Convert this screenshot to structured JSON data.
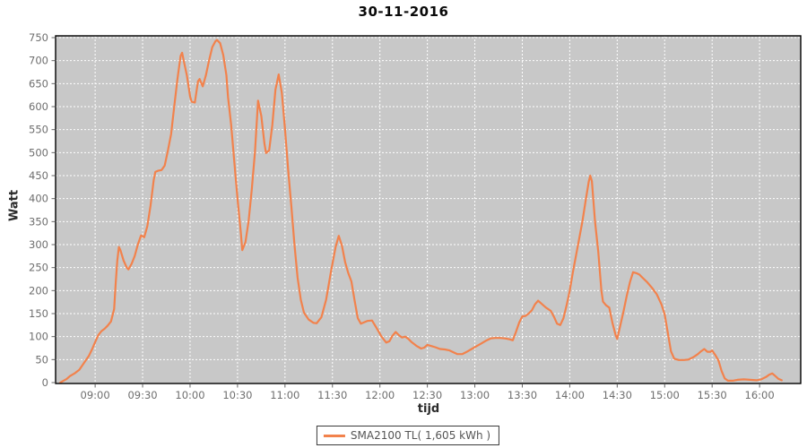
{
  "title": "30-11-2016",
  "colors": {
    "plot_background": "#C8C8C8",
    "gridline": "#FFFFFF",
    "series_line": "#F2824C",
    "plot_border": "#000000",
    "tick_label": "#6E6E6E",
    "axis_title": "#2B2B2B",
    "legend_text": "#555555"
  },
  "y_axis": {
    "label": "Watt",
    "ticks": [
      0,
      50,
      100,
      150,
      200,
      250,
      300,
      350,
      400,
      450,
      500,
      550,
      600,
      650,
      700,
      750
    ]
  },
  "x_axis": {
    "label": "tijd",
    "ticks": [
      "09:00",
      "09:30",
      "10:00",
      "10:30",
      "11:00",
      "11:30",
      "12:00",
      "12:30",
      "13:00",
      "13:30",
      "14:00",
      "14:30",
      "15:00",
      "15:30",
      "16:00"
    ]
  },
  "legend": {
    "label": "SMA2100 TL( 1,605 kWh )"
  },
  "chart_data": {
    "type": "line",
    "title": "30-11-2016",
    "xlabel": "tijd",
    "ylabel": "Watt",
    "ylim": [
      0,
      750
    ],
    "x_range": [
      "08:35",
      "16:26"
    ],
    "grid": true,
    "grid_style": "white-dashed",
    "legend_position": "bottom",
    "series": [
      {
        "name": "SMA2100 TL( 1,605 kWh )",
        "color": "#F2824C",
        "points": [
          [
            "08:38",
            0
          ],
          [
            "08:40",
            4
          ],
          [
            "08:42",
            8
          ],
          [
            "08:44",
            14
          ],
          [
            "08:47",
            20
          ],
          [
            "08:50",
            28
          ],
          [
            "08:52",
            38
          ],
          [
            "08:54",
            48
          ],
          [
            "08:56",
            58
          ],
          [
            "08:58",
            72
          ],
          [
            "09:00",
            88
          ],
          [
            "09:02",
            103
          ],
          [
            "09:04",
            112
          ],
          [
            "09:06",
            117
          ],
          [
            "09:08",
            124
          ],
          [
            "09:10",
            133
          ],
          [
            "09:12",
            160
          ],
          [
            "09:13",
            215
          ],
          [
            "09:14",
            265
          ],
          [
            "09:15",
            295
          ],
          [
            "09:16",
            288
          ],
          [
            "09:18",
            265
          ],
          [
            "09:20",
            250
          ],
          [
            "09:21",
            246
          ],
          [
            "09:23",
            258
          ],
          [
            "09:25",
            275
          ],
          [
            "09:27",
            300
          ],
          [
            "09:29",
            320
          ],
          [
            "09:31",
            316
          ],
          [
            "09:33",
            340
          ],
          [
            "09:35",
            385
          ],
          [
            "09:37",
            440
          ],
          [
            "09:38",
            458
          ],
          [
            "09:40",
            461
          ],
          [
            "09:42",
            462
          ],
          [
            "09:44",
            472
          ],
          [
            "09:46",
            505
          ],
          [
            "09:48",
            540
          ],
          [
            "09:50",
            600
          ],
          [
            "09:52",
            660
          ],
          [
            "09:54",
            710
          ],
          [
            "09:55",
            717
          ],
          [
            "09:56",
            700
          ],
          [
            "09:58",
            668
          ],
          [
            "10:00",
            622
          ],
          [
            "10:01",
            611
          ],
          [
            "10:03",
            609
          ],
          [
            "10:05",
            655
          ],
          [
            "10:06",
            660
          ],
          [
            "10:08",
            644
          ],
          [
            "10:10",
            668
          ],
          [
            "10:12",
            700
          ],
          [
            "10:14",
            729
          ],
          [
            "10:16",
            742
          ],
          [
            "10:17",
            745
          ],
          [
            "10:19",
            738
          ],
          [
            "10:21",
            712
          ],
          [
            "10:23",
            668
          ],
          [
            "10:24",
            621
          ],
          [
            "10:26",
            560
          ],
          [
            "10:28",
            478
          ],
          [
            "10:30",
            400
          ],
          [
            "10:32",
            330
          ],
          [
            "10:33",
            288
          ],
          [
            "10:35",
            305
          ],
          [
            "10:37",
            350
          ],
          [
            "10:39",
            420
          ],
          [
            "10:41",
            500
          ],
          [
            "10:43",
            613
          ],
          [
            "10:45",
            580
          ],
          [
            "10:47",
            520
          ],
          [
            "10:48",
            499
          ],
          [
            "10:50",
            505
          ],
          [
            "10:52",
            560
          ],
          [
            "10:54",
            637
          ],
          [
            "10:56",
            670
          ],
          [
            "10:58",
            630
          ],
          [
            "11:00",
            552
          ],
          [
            "11:02",
            462
          ],
          [
            "11:04",
            384
          ],
          [
            "11:06",
            300
          ],
          [
            "11:08",
            228
          ],
          [
            "11:10",
            180
          ],
          [
            "11:12",
            152
          ],
          [
            "11:15",
            137
          ],
          [
            "11:18",
            130
          ],
          [
            "11:20",
            129
          ],
          [
            "11:23",
            142
          ],
          [
            "11:26",
            180
          ],
          [
            "11:29",
            240
          ],
          [
            "11:32",
            295
          ],
          [
            "11:34",
            319
          ],
          [
            "11:36",
            298
          ],
          [
            "11:38",
            262
          ],
          [
            "11:40",
            238
          ],
          [
            "11:42",
            220
          ],
          [
            "11:44",
            178
          ],
          [
            "11:46",
            140
          ],
          [
            "11:48",
            128
          ],
          [
            "11:50",
            131
          ],
          [
            "11:52",
            134
          ],
          [
            "11:55",
            135
          ],
          [
            "11:58",
            118
          ],
          [
            "12:01",
            100
          ],
          [
            "12:04",
            87
          ],
          [
            "12:06",
            90
          ],
          [
            "12:08",
            102
          ],
          [
            "12:10",
            110
          ],
          [
            "12:12",
            103
          ],
          [
            "12:14",
            98
          ],
          [
            "12:16",
            100
          ],
          [
            "12:18",
            95
          ],
          [
            "12:20",
            88
          ],
          [
            "12:23",
            80
          ],
          [
            "12:26",
            74
          ],
          [
            "12:28",
            76
          ],
          [
            "12:30",
            82
          ],
          [
            "12:32",
            80
          ],
          [
            "12:35",
            77
          ],
          [
            "12:38",
            73
          ],
          [
            "12:41",
            72
          ],
          [
            "12:44",
            70
          ],
          [
            "12:47",
            65
          ],
          [
            "12:49",
            62
          ],
          [
            "12:52",
            62
          ],
          [
            "12:55",
            67
          ],
          [
            "12:58",
            73
          ],
          [
            "13:01",
            79
          ],
          [
            "13:04",
            85
          ],
          [
            "13:07",
            91
          ],
          [
            "13:10",
            96
          ],
          [
            "13:13",
            97
          ],
          [
            "13:16",
            97
          ],
          [
            "13:19",
            96
          ],
          [
            "13:22",
            94
          ],
          [
            "13:24",
            92
          ],
          [
            "13:26",
            110
          ],
          [
            "13:28",
            130
          ],
          [
            "13:30",
            144
          ],
          [
            "13:32",
            145
          ],
          [
            "13:34",
            150
          ],
          [
            "13:36",
            157
          ],
          [
            "13:38",
            170
          ],
          [
            "13:40",
            178
          ],
          [
            "13:42",
            172
          ],
          [
            "13:45",
            163
          ],
          [
            "13:48",
            156
          ],
          [
            "13:50",
            143
          ],
          [
            "13:52",
            128
          ],
          [
            "13:54",
            125
          ],
          [
            "13:56",
            140
          ],
          [
            "13:58",
            168
          ],
          [
            "14:00",
            200
          ],
          [
            "14:02",
            240
          ],
          [
            "14:05",
            295
          ],
          [
            "14:08",
            350
          ],
          [
            "14:10",
            395
          ],
          [
            "14:12",
            437
          ],
          [
            "14:13",
            450
          ],
          [
            "14:14",
            438
          ],
          [
            "14:16",
            350
          ],
          [
            "14:18",
            285
          ],
          [
            "14:20",
            200
          ],
          [
            "14:21",
            176
          ],
          [
            "14:23",
            168
          ],
          [
            "14:25",
            163
          ],
          [
            "14:27",
            130
          ],
          [
            "14:29",
            103
          ],
          [
            "14:30",
            95
          ],
          [
            "14:32",
            125
          ],
          [
            "14:34",
            155
          ],
          [
            "14:36",
            188
          ],
          [
            "14:38",
            218
          ],
          [
            "14:40",
            240
          ],
          [
            "14:42",
            238
          ],
          [
            "14:44",
            235
          ],
          [
            "14:46",
            228
          ],
          [
            "14:49",
            218
          ],
          [
            "14:52",
            206
          ],
          [
            "14:55",
            192
          ],
          [
            "14:58",
            170
          ],
          [
            "15:00",
            148
          ],
          [
            "15:02",
            108
          ],
          [
            "15:04",
            68
          ],
          [
            "15:06",
            52
          ],
          [
            "15:09",
            49
          ],
          [
            "15:12",
            49
          ],
          [
            "15:15",
            50
          ],
          [
            "15:18",
            55
          ],
          [
            "15:21",
            62
          ],
          [
            "15:23",
            68
          ],
          [
            "15:25",
            73
          ],
          [
            "15:27",
            67
          ],
          [
            "15:29",
            67
          ],
          [
            "15:30",
            70
          ],
          [
            "15:32",
            60
          ],
          [
            "15:34",
            48
          ],
          [
            "15:36",
            25
          ],
          [
            "15:38",
            9
          ],
          [
            "15:40",
            4
          ],
          [
            "15:43",
            4
          ],
          [
            "15:46",
            6
          ],
          [
            "15:50",
            7
          ],
          [
            "15:54",
            6
          ],
          [
            "15:58",
            5
          ],
          [
            "16:01",
            7
          ],
          [
            "16:04",
            12
          ],
          [
            "16:06",
            17
          ],
          [
            "16:08",
            20
          ],
          [
            "16:10",
            14
          ],
          [
            "16:12",
            8
          ],
          [
            "16:14",
            5
          ]
        ]
      }
    ]
  }
}
